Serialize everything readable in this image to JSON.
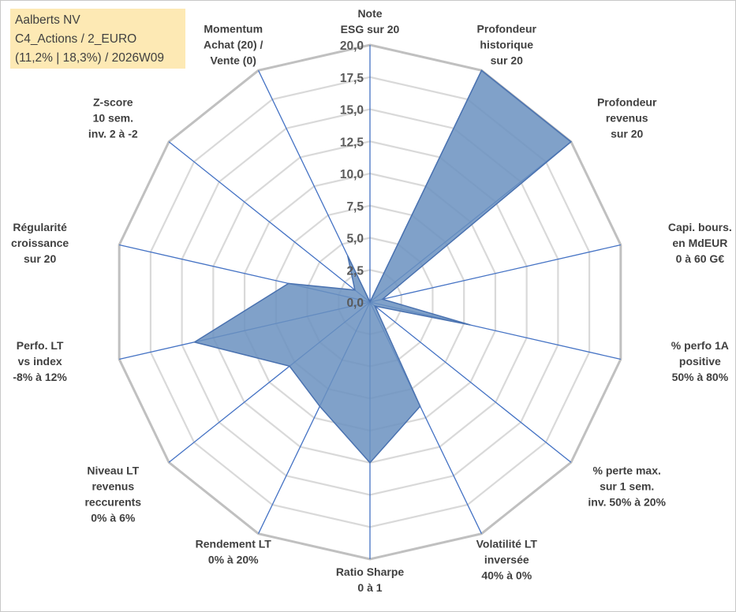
{
  "info_box": {
    "line1": "Aalberts NV",
    "line2": "C4_Actions / 2_EURO",
    "line3": "(11,2% | 18,3%) / 2026W09"
  },
  "colors": {
    "fill": "#6a90bf",
    "stroke": "#4a72b0",
    "spoke": "#4472c4",
    "grid_outer": "#c0c0c0",
    "grid_inner": "#d9d9d9",
    "info_bg": "#fde9b4"
  },
  "chart_data": {
    "type": "radar",
    "title": "",
    "rmin": 0,
    "rmax": 20,
    "grid": true,
    "tick_values": [
      0,
      2.5,
      5,
      7.5,
      10,
      12.5,
      15,
      17.5,
      20
    ],
    "tick_labels": [
      "0,0",
      "2,5",
      "5,0",
      "7,5",
      "10,0",
      "12,5",
      "15,0",
      "17,5",
      "20,0"
    ],
    "axes": [
      {
        "label": [
          "Note",
          "ESG sur 20"
        ]
      },
      {
        "label": [
          "Profondeur",
          "historique",
          "sur 20"
        ]
      },
      {
        "label": [
          "Profondeur",
          "revenus",
          "sur 20"
        ]
      },
      {
        "label": [
          "Capi. bours.",
          "en MdEUR",
          "0 à 60 G€"
        ]
      },
      {
        "label": [
          "% perfo 1A",
          "positive",
          "50% à 80%"
        ]
      },
      {
        "label": [
          "% perte max.",
          "sur 1 sem.",
          "inv. 50% à 20%"
        ]
      },
      {
        "label": [
          "Volatilité LT",
          "inversée",
          "40% à 0%"
        ]
      },
      {
        "label": [
          "Ratio Sharpe",
          "0 à 1"
        ]
      },
      {
        "label": [
          "Rendement LT",
          "0% à 20%"
        ]
      },
      {
        "label": [
          "Niveau LT",
          "revenus",
          "reccurents",
          "0% à 6%"
        ]
      },
      {
        "label": [
          "Perfo. LT",
          "vs index",
          "-8% à 12%"
        ]
      },
      {
        "label": [
          "Régularité",
          "croissance",
          "sur 20"
        ]
      },
      {
        "label": [
          "Z-score",
          "10 sem.",
          "inv. 2 à -2"
        ]
      },
      {
        "label": [
          "Momentum",
          "Achat (20) /",
          "Vente (0)"
        ]
      }
    ],
    "series": [
      {
        "values": [
          0,
          20,
          20,
          1,
          8,
          0.5,
          9,
          12.5,
          9,
          8,
          14,
          6.5,
          1.5,
          4
        ]
      }
    ]
  }
}
